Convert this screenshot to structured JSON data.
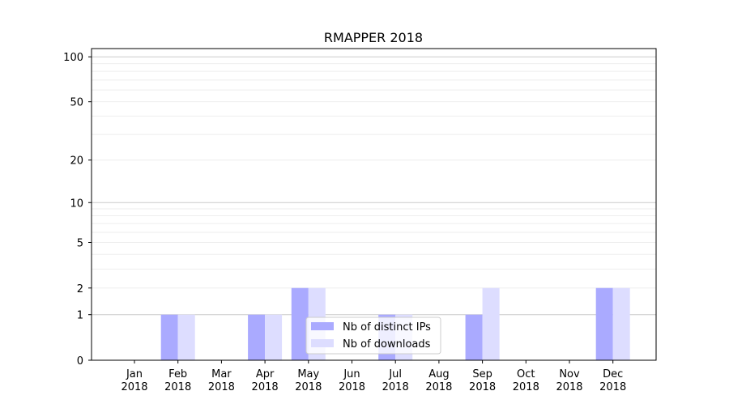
{
  "chart_data": {
    "type": "bar",
    "title": "RMAPPER 2018",
    "xlabel": "",
    "ylabel": "",
    "y_scale": "symlog (log10(v+1))",
    "ylim": [
      0,
      113
    ],
    "y_ticks": [
      0,
      1,
      2,
      5,
      10,
      20,
      50,
      100
    ],
    "grid": true,
    "legend_position": "bottom-center",
    "categories": [
      "Jan\n2018",
      "Feb\n2018",
      "Mar\n2018",
      "Apr\n2018",
      "May\n2018",
      "Jun\n2018",
      "Jul\n2018",
      "Aug\n2018",
      "Sep\n2018",
      "Oct\n2018",
      "Nov\n2018",
      "Dec\n2018"
    ],
    "series": [
      {
        "name": "Nb of distinct IPs",
        "color": "#aaaaff",
        "values": [
          0,
          1,
          0,
          1,
          2,
          0,
          1,
          0,
          1,
          0,
          0,
          2
        ]
      },
      {
        "name": "Nb of downloads",
        "color": "#ddddff",
        "values": [
          0,
          1,
          0,
          1,
          2,
          0,
          1,
          0,
          2,
          0,
          0,
          2
        ]
      }
    ]
  }
}
